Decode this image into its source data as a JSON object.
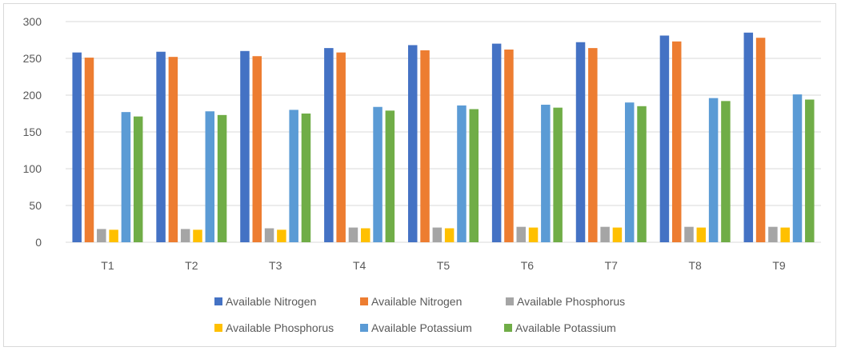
{
  "chart_data": {
    "type": "bar",
    "title": "",
    "xlabel": "",
    "ylabel": "",
    "ylim": [
      0,
      300
    ],
    "yticks": [
      0,
      50,
      100,
      150,
      200,
      250,
      300
    ],
    "grid": "horizontal",
    "legend_position": "bottom",
    "categories": [
      "T1",
      "T2",
      "T3",
      "T4",
      "T5",
      "T6",
      "T7",
      "T8",
      "T9"
    ],
    "series": [
      {
        "name": "Available Nitrogen",
        "color": "#4472c4",
        "values": [
          258,
          259,
          260,
          264,
          268,
          270,
          272,
          281,
          285
        ]
      },
      {
        "name": "Available Nitrogen",
        "color": "#ed7d31",
        "values": [
          251,
          252,
          253,
          258,
          261,
          262,
          264,
          273,
          278
        ]
      },
      {
        "name": "Available Phosphorus",
        "color": "#a5a5a5",
        "values": [
          18,
          18,
          19,
          20,
          20,
          21,
          21,
          21,
          21
        ]
      },
      {
        "name": "Available Phosphorus",
        "color": "#ffc000",
        "values": [
          17,
          17,
          17,
          19,
          19,
          20,
          20,
          20,
          20
        ]
      },
      {
        "name": "Available Potassium",
        "color": "#5b9bd5",
        "values": [
          177,
          178,
          180,
          184,
          186,
          187,
          190,
          196,
          201
        ]
      },
      {
        "name": "Available Potassium",
        "color": "#70ad47",
        "values": [
          171,
          173,
          175,
          179,
          181,
          183,
          185,
          192,
          194
        ]
      }
    ]
  }
}
